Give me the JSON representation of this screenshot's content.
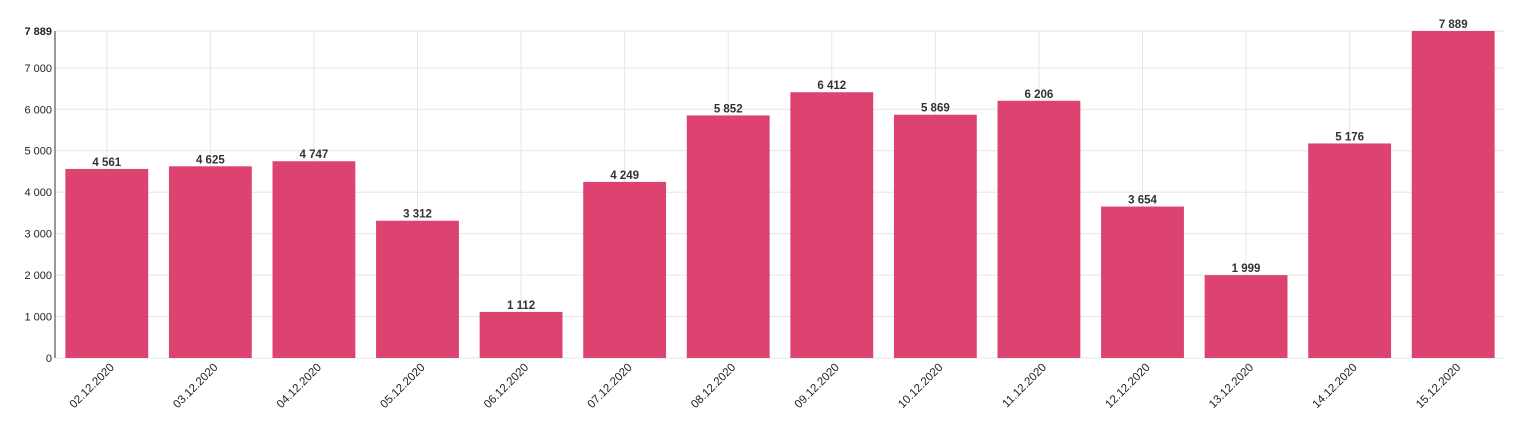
{
  "chart_data": {
    "type": "bar",
    "title": "",
    "xlabel": "",
    "ylabel": "",
    "categories": [
      "02.12.2020",
      "03.12.2020",
      "04.12.2020",
      "05.12.2020",
      "06.12.2020",
      "07.12.2020",
      "08.12.2020",
      "09.12.2020",
      "10.12.2020",
      "11.12.2020",
      "12.12.2020",
      "13.12.2020",
      "14.12.2020",
      "15.12.2020"
    ],
    "values": [
      4561,
      4625,
      4747,
      3312,
      1112,
      4249,
      5852,
      6412,
      5869,
      6206,
      3654,
      1999,
      5176,
      7889
    ],
    "value_labels": [
      "4 561",
      "4 625",
      "4 747",
      "3 312",
      "1 112",
      "4 249",
      "5 852",
      "6 412",
      "5 869",
      "6 206",
      "3 654",
      "1 999",
      "5 176",
      "7 889"
    ],
    "ylim": [
      0,
      7889
    ],
    "yticks": [
      0,
      1000,
      2000,
      3000,
      4000,
      5000,
      6000,
      7000,
      7889
    ],
    "ytick_labels": [
      "0",
      "1 000",
      "2 000",
      "3 000",
      "4 000",
      "5 000",
      "6 000",
      "7 000",
      "7 889"
    ],
    "grid": true,
    "legend": "none",
    "bar_color": "#dc4370"
  }
}
